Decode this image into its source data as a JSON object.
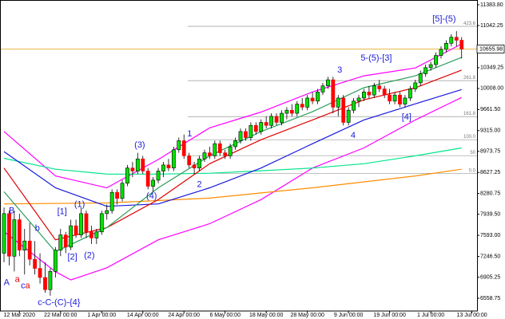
{
  "chart_data": {
    "type": "candlestick",
    "up_color": "#00e000",
    "down_color": "#ff0000",
    "xlim": [
      -0.78,
      92
    ],
    "ylim": [
      6349,
      11462
    ],
    "xticks": [
      {
        "value": 3,
        "label": "12 Mar 2020"
      },
      {
        "value": 11,
        "label": "22 Mar 00:00"
      },
      {
        "value": 19,
        "label": "1 Apr 00:00"
      },
      {
        "value": 27,
        "label": "14 Apr 00:00"
      },
      {
        "value": 35,
        "label": "24 Apr 00:00"
      },
      {
        "value": 43,
        "label": "6 May 00:00"
      },
      {
        "value": 51,
        "label": "18 May 00:00"
      },
      {
        "value": 59,
        "label": "28 May 00:00"
      },
      {
        "value": 67,
        "label": "9 Jun 00:00"
      },
      {
        "value": 75,
        "label": "19 Jun 00:00"
      },
      {
        "value": 83,
        "label": "1 Jul 00:00"
      },
      {
        "value": 91,
        "label": "13 Jul 00:00"
      }
    ],
    "yticks": [
      {
        "value": 11383.8,
        "label": "11383.80"
      },
      {
        "value": 11042.25,
        "label": "11042.25"
      },
      {
        "value": 10349.25,
        "label": "10349.25"
      },
      {
        "value": 10008,
        "label": "10008.00"
      },
      {
        "value": 9661.5,
        "label": "9661.50"
      },
      {
        "value": 9315,
        "label": "9315.00"
      },
      {
        "value": 8973.75,
        "label": "8973.75"
      },
      {
        "value": 8627.25,
        "label": "8627.25"
      },
      {
        "value": 8280.75,
        "label": "8280.75"
      },
      {
        "value": 7939.5,
        "label": "7939.50"
      },
      {
        "value": 7593,
        "label": "7593.00"
      },
      {
        "value": 7246.5,
        "label": "7246.50"
      },
      {
        "value": 6905.25,
        "label": "6905.25"
      },
      {
        "value": 6558.75,
        "label": "6558.75"
      }
    ],
    "current_price": 10655.98,
    "current_price_color": "#e8b84a",
    "ohlc": [
      [
        7300,
        8050,
        7150,
        7950
      ],
      [
        7950,
        8000,
        7100,
        7250
      ],
      [
        7250,
        8000,
        7000,
        7850
      ],
      [
        7850,
        7950,
        7250,
        7350
      ],
      [
        7350,
        7700,
        6950,
        7500
      ],
      [
        7500,
        7800,
        7100,
        7200
      ],
      [
        7200,
        7500,
        6950,
        7050
      ],
      [
        7050,
        7300,
        6800,
        6900
      ],
      [
        6900,
        7150,
        6650,
        6700
      ],
      [
        6700,
        7050,
        6600,
        7000
      ],
      [
        7000,
        7400,
        6900,
        7350
      ],
      [
        7350,
        7700,
        7250,
        7600
      ],
      [
        7600,
        7650,
        7300,
        7400
      ],
      [
        7400,
        7850,
        7350,
        7750
      ],
      [
        7750,
        7850,
        7550,
        7600
      ],
      [
        7600,
        8050,
        7550,
        7950
      ],
      [
        7950,
        8000,
        7550,
        7650
      ],
      [
        7650,
        7750,
        7450,
        7550
      ],
      [
        7550,
        7700,
        7450,
        7650
      ],
      [
        7650,
        8000,
        7600,
        7950
      ],
      [
        7950,
        8100,
        7850,
        8000
      ],
      [
        8000,
        8350,
        7950,
        8300
      ],
      [
        8300,
        8350,
        8100,
        8200
      ],
      [
        8200,
        8500,
        8150,
        8450
      ],
      [
        8450,
        8750,
        8400,
        8700
      ],
      [
        8700,
        8800,
        8550,
        8650
      ],
      [
        8650,
        8950,
        8600,
        8850
      ],
      [
        8850,
        8900,
        8600,
        8650
      ],
      [
        8650,
        8700,
        8350,
        8400
      ],
      [
        8400,
        8550,
        8300,
        8500
      ],
      [
        8500,
        8700,
        8450,
        8650
      ],
      [
        8650,
        8800,
        8550,
        8750
      ],
      [
        8750,
        8850,
        8650,
        8700
      ],
      [
        8700,
        9050,
        8650,
        9000
      ],
      [
        9000,
        9200,
        8950,
        9150
      ],
      [
        9150,
        9250,
        8850,
        8900
      ],
      [
        8900,
        8950,
        8700,
        8750
      ],
      [
        8750,
        8800,
        8600,
        8700
      ],
      [
        8700,
        8900,
        8650,
        8850
      ],
      [
        8850,
        9000,
        8800,
        8950
      ],
      [
        8950,
        9050,
        8850,
        8900
      ],
      [
        8900,
        9150,
        8850,
        9100
      ],
      [
        9100,
        9150,
        8900,
        8950
      ],
      [
        8950,
        9000,
        8850,
        8900
      ],
      [
        8900,
        9100,
        8850,
        9050
      ],
      [
        9050,
        9200,
        9000,
        9150
      ],
      [
        9150,
        9350,
        9100,
        9300
      ],
      [
        9300,
        9350,
        9150,
        9200
      ],
      [
        9200,
        9450,
        9150,
        9400
      ],
      [
        9400,
        9450,
        9250,
        9300
      ],
      [
        9300,
        9500,
        9250,
        9450
      ],
      [
        9450,
        9550,
        9350,
        9400
      ],
      [
        9400,
        9600,
        9350,
        9550
      ],
      [
        9550,
        9600,
        9400,
        9450
      ],
      [
        9450,
        9650,
        9400,
        9600
      ],
      [
        9600,
        9700,
        9500,
        9650
      ],
      [
        9650,
        9750,
        9550,
        9600
      ],
      [
        9600,
        9800,
        9550,
        9750
      ],
      [
        9750,
        9850,
        9650,
        9700
      ],
      [
        9700,
        9900,
        9650,
        9850
      ],
      [
        9850,
        9950,
        9750,
        9800
      ],
      [
        9800,
        10000,
        9750,
        9950
      ],
      [
        9950,
        10100,
        9900,
        10050
      ],
      [
        10050,
        10200,
        10000,
        10150
      ],
      [
        10150,
        10200,
        9600,
        9700
      ],
      [
        9700,
        9900,
        9550,
        9850
      ],
      [
        9850,
        9900,
        9400,
        9450
      ],
      [
        9450,
        9700,
        9400,
        9650
      ],
      [
        9650,
        9850,
        9600,
        9800
      ],
      [
        9800,
        9900,
        9700,
        9850
      ],
      [
        9850,
        10000,
        9800,
        9950
      ],
      [
        9950,
        10050,
        9850,
        9900
      ],
      [
        9900,
        10100,
        9850,
        10050
      ],
      [
        10050,
        10150,
        9950,
        10000
      ],
      [
        10000,
        10050,
        9850,
        9900
      ],
      [
        9900,
        10000,
        9750,
        9800
      ],
      [
        9800,
        9950,
        9750,
        9900
      ],
      [
        9900,
        9950,
        9700,
        9750
      ],
      [
        9750,
        9900,
        9700,
        9850
      ],
      [
        9850,
        10050,
        9800,
        10000
      ],
      [
        10000,
        10150,
        9950,
        10100
      ],
      [
        10100,
        10300,
        10050,
        10250
      ],
      [
        10250,
        10400,
        10200,
        10350
      ],
      [
        10350,
        10450,
        10300,
        10400
      ],
      [
        10400,
        10600,
        10350,
        10550
      ],
      [
        10550,
        10700,
        10500,
        10650
      ],
      [
        10650,
        10800,
        10600,
        10750
      ],
      [
        10750,
        10900,
        10700,
        10850
      ],
      [
        10850,
        10950,
        10700,
        10800
      ],
      [
        10800,
        10850,
        10500,
        10655.98
      ]
    ],
    "lines": [
      {
        "color": "#ff00ff",
        "x": [
          0,
          10,
          20,
          30,
          40,
          50,
          60,
          70,
          80,
          89
        ],
        "values": [
          9300,
          8570,
          8375,
          8840,
          9360,
          9620,
          9950,
          10215,
          10345,
          10740
        ]
      },
      {
        "color": "#ff00ff",
        "x": [
          0,
          10,
          13,
          20,
          30,
          40,
          50,
          60,
          70,
          80,
          89
        ],
        "values": [
          7655,
          6995,
          6860,
          7060,
          7520,
          7785,
          8180,
          8700,
          9030,
          9490,
          9860
        ]
      },
      {
        "color": "#ff8c00",
        "x": [
          0,
          20,
          40,
          60,
          80,
          89
        ],
        "values": [
          8110,
          8125,
          8205,
          8375,
          8570,
          8680
        ]
      },
      {
        "color": "#00e68a",
        "x": [
          0,
          10,
          20,
          30,
          40,
          50,
          60,
          70,
          80,
          89
        ],
        "values": [
          8860,
          8680,
          8600,
          8600,
          8615,
          8655,
          8700,
          8770,
          8900,
          9030
        ]
      },
      {
        "color": "#1a1add",
        "x": [
          0,
          10,
          20,
          30,
          40,
          50,
          60,
          70,
          80,
          89
        ],
        "values": [
          8970,
          8375,
          8070,
          8110,
          8375,
          8700,
          9100,
          9490,
          9755,
          9990
        ]
      },
      {
        "color": "#e00000",
        "x": [
          0,
          10,
          20,
          30,
          40,
          50,
          60,
          70,
          80,
          89
        ],
        "values": [
          8700,
          7520,
          7720,
          8180,
          8770,
          9165,
          9490,
          9820,
          10020,
          10310
        ]
      },
      {
        "color": "#2e9e5b",
        "x": [
          0,
          10,
          20,
          30,
          40,
          50,
          60,
          70,
          80,
          89
        ],
        "values": [
          8310,
          7325,
          7720,
          8375,
          8900,
          9300,
          9625,
          10020,
          10215,
          10520
        ]
      }
    ],
    "fib_levels": [
      {
        "value": 11029,
        "label": "423.6"
      },
      {
        "value": 10136,
        "label": "261.8"
      },
      {
        "value": 9545,
        "label": "161.8"
      },
      {
        "value": 9165,
        "label": "100.0"
      },
      {
        "value": 8903,
        "label": "50"
      },
      {
        "value": 8613,
        "label": "0.0"
      }
    ],
    "annotations": [
      {
        "text": "A",
        "x": 0.5,
        "y": 6814,
        "color": "#1a1add"
      },
      {
        "text": "B",
        "x": 1.5,
        "y": 7996,
        "color": "#1a1add"
      },
      {
        "text": "a",
        "x": 2.6,
        "y": 6867,
        "color": "#e00000"
      },
      {
        "text": "c",
        "x": 3.7,
        "y": 6762,
        "color": "#1a1add"
      },
      {
        "text": "a",
        "x": 4.6,
        "y": 6762,
        "color": "#e00000"
      },
      {
        "text": "b",
        "x": 6.5,
        "y": 7707,
        "color": "#1a1add"
      },
      {
        "text": "c-C-(C)-{4}",
        "x": 10.7,
        "y": 6486,
        "color": "#1a1add"
      },
      {
        "text": "[1]",
        "x": 11.3,
        "y": 7983,
        "color": "#1a1add"
      },
      {
        "text": "(1)",
        "x": 14.7,
        "y": 8101,
        "color": "#1a1add"
      },
      {
        "text": "[2]",
        "x": 13.3,
        "y": 7234,
        "color": "#1a1add"
      },
      {
        "text": "(2)",
        "x": 16.6,
        "y": 7261,
        "color": "#1a1add"
      },
      {
        "text": "(3)",
        "x": 26.4,
        "y": 9073,
        "color": "#1a1add"
      },
      {
        "text": "(4)",
        "x": 28.7,
        "y": 8233,
        "color": "#1a1add"
      },
      {
        "text": "1",
        "x": 36.1,
        "y": 9257,
        "color": "#1a1add"
      },
      {
        "text": "2",
        "x": 38,
        "y": 8429,
        "color": "#1a1add"
      },
      {
        "text": "3",
        "x": 65.3,
        "y": 10307,
        "color": "#1a1add"
      },
      {
        "text": "4",
        "x": 67.9,
        "y": 9230,
        "color": "#1a1add"
      },
      {
        "text": "5-(5)-[3]",
        "x": 72.4,
        "y": 10504,
        "color": "#1a1add"
      },
      {
        "text": "[4]",
        "x": 78.3,
        "y": 9532,
        "color": "#1a1add"
      },
      {
        "text": "[5]-(5)",
        "x": 85.6,
        "y": 11147,
        "color": "#1a1add"
      }
    ]
  }
}
